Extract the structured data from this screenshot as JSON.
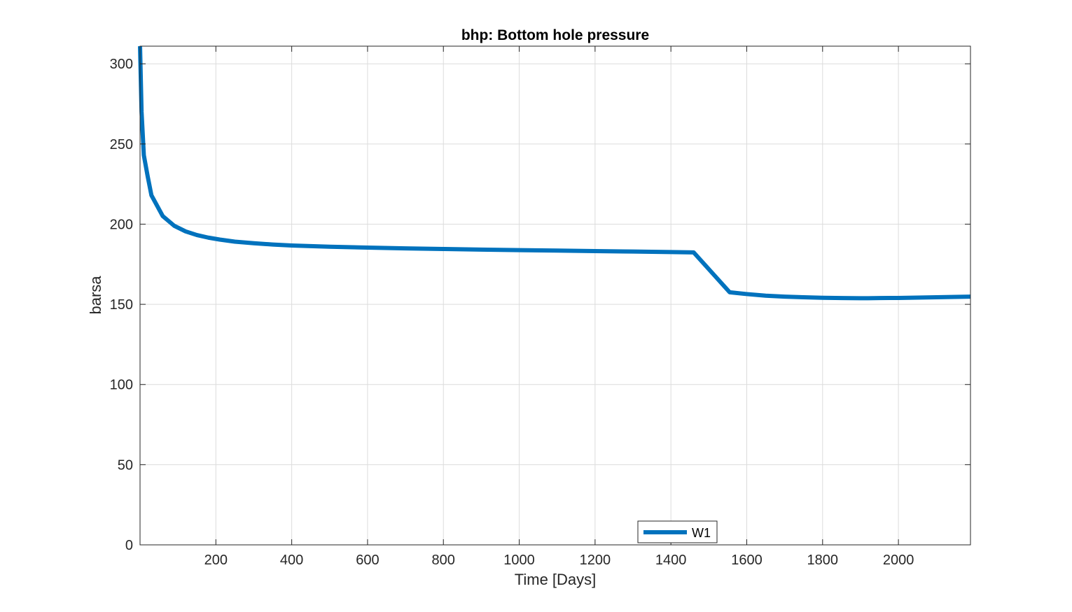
{
  "chart_data": {
    "type": "line",
    "title": "bhp: Bottom hole pressure",
    "xlabel": "Time [Days]",
    "ylabel": "barsa",
    "xlim": [
      0,
      2190
    ],
    "ylim": [
      0,
      311
    ],
    "xticks": [
      200,
      400,
      600,
      800,
      1000,
      1200,
      1400,
      1600,
      1800,
      2000
    ],
    "yticks": [
      0,
      50,
      100,
      150,
      200,
      250,
      300
    ],
    "grid": true,
    "legend_position": "bottom-center",
    "series": [
      {
        "name": "W1",
        "color": "#0072bd",
        "x": [
          0,
          4,
          10,
          20,
          30,
          60,
          90,
          120,
          150,
          180,
          210,
          250,
          300,
          350,
          400,
          500,
          600,
          700,
          800,
          900,
          1000,
          1100,
          1200,
          1300,
          1400,
          1460,
          1555,
          1600,
          1650,
          1700,
          1750,
          1800,
          1850,
          1900,
          1920,
          1950,
          2000,
          2050,
          2100,
          2150,
          2190
        ],
        "y": [
          311,
          270,
          243,
          230,
          218,
          205,
          199,
          195.5,
          193.2,
          191.6,
          190.4,
          189.1,
          188.1,
          187.3,
          186.7,
          185.9,
          185.4,
          184.9,
          184.5,
          184.1,
          183.8,
          183.5,
          183.2,
          182.9,
          182.6,
          182.4,
          157.5,
          156.4,
          155.4,
          154.8,
          154.4,
          154.1,
          153.9,
          153.8,
          153.8,
          153.9,
          154.0,
          154.2,
          154.4,
          154.6,
          154.8
        ]
      }
    ]
  }
}
